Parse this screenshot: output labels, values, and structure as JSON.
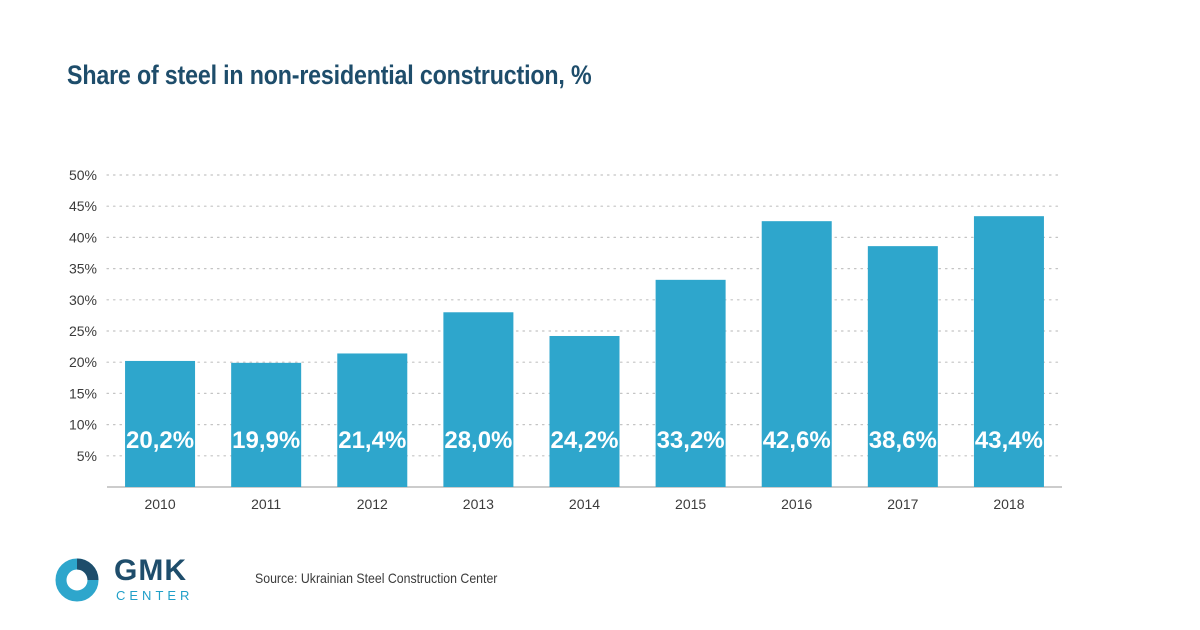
{
  "title": "Share of steel in non-residential construction, %",
  "source": "Source: Ukrainian Steel Construction Center",
  "logo": {
    "name": "GMK",
    "sub": "CENTER"
  },
  "colors": {
    "bar": "#2ea6cc",
    "title": "#1e4d6b",
    "logo_dark": "#1e4d6b",
    "logo_light": "#2ea6cc"
  },
  "chart_data": {
    "type": "bar",
    "title": "Share of steel in non-residential construction, %",
    "xlabel": "",
    "ylabel": "",
    "categories": [
      "2010",
      "2011",
      "2012",
      "2013",
      "2014",
      "2015",
      "2016",
      "2017",
      "2018"
    ],
    "values": [
      20.2,
      19.9,
      21.4,
      28.0,
      24.2,
      33.2,
      42.6,
      38.6,
      43.4
    ],
    "data_labels": [
      "20,2%",
      "19,9%",
      "21,4%",
      "28,0%",
      "24,2%",
      "33,2%",
      "42,6%",
      "38,6%",
      "43,4%"
    ],
    "yticks": [
      5,
      10,
      15,
      20,
      25,
      30,
      35,
      40,
      45,
      50
    ],
    "ytick_labels": [
      "5%",
      "10%",
      "15%",
      "20%",
      "25%",
      "30%",
      "35%",
      "40%",
      "45%",
      "50%"
    ],
    "ylim": [
      0,
      50
    ],
    "grid": true,
    "legend": "none"
  }
}
